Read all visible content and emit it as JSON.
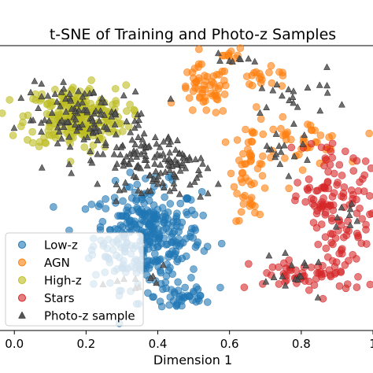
{
  "chart_data": {
    "type": "scatter",
    "title": "t-SNE of Training and Photo-z Samples",
    "xlabel": "Dimension 1",
    "ylabel": "",
    "xlim": [
      -0.04,
      1.0
    ],
    "ylim": [
      0.0,
      1.0
    ],
    "x_ticks": [
      {
        "value": 0.0,
        "label": "0.0"
      },
      {
        "value": 0.2,
        "label": "0.2"
      },
      {
        "value": 0.4,
        "label": "0.4"
      },
      {
        "value": 0.6,
        "label": "0.6"
      },
      {
        "value": 0.8,
        "label": "0.8"
      },
      {
        "value": 1.0,
        "label": "1"
      }
    ],
    "grid": false,
    "legend": "lower-left",
    "series": [
      {
        "name": "Low-z",
        "marker": "circle",
        "color": "#1f77b4",
        "clusters": [
          {
            "cx": 0.37,
            "cy": 0.33,
            "sx": 0.075,
            "sy": 0.09,
            "n": 330
          },
          {
            "cx": 0.47,
            "cy": 0.12,
            "sx": 0.04,
            "sy": 0.03,
            "n": 35
          }
        ]
      },
      {
        "name": "AGN",
        "marker": "circle",
        "color": "#ff7f0e",
        "clusters": [
          {
            "cx": 0.53,
            "cy": 0.84,
            "sx": 0.035,
            "sy": 0.045,
            "n": 55
          },
          {
            "cx": 0.6,
            "cy": 0.97,
            "sx": 0.02,
            "sy": 0.015,
            "n": 10
          },
          {
            "cx": 0.7,
            "cy": 0.88,
            "sx": 0.05,
            "sy": 0.02,
            "n": 20
          },
          {
            "cx": 0.66,
            "cy": 0.57,
            "sx": 0.025,
            "sy": 0.09,
            "n": 55
          },
          {
            "cx": 0.8,
            "cy": 0.66,
            "sx": 0.06,
            "sy": 0.04,
            "n": 40
          }
        ]
      },
      {
        "name": "High-z",
        "marker": "circle",
        "color": "#bcbd22",
        "clusters": [
          {
            "cx": 0.17,
            "cy": 0.75,
            "sx": 0.07,
            "sy": 0.055,
            "n": 230
          }
        ]
      },
      {
        "name": "Stars",
        "marker": "circle",
        "color": "#d62728",
        "clusters": [
          {
            "cx": 0.93,
            "cy": 0.47,
            "sx": 0.035,
            "sy": 0.09,
            "n": 55
          },
          {
            "cx": 0.85,
            "cy": 0.45,
            "sx": 0.03,
            "sy": 0.05,
            "n": 40
          },
          {
            "cx": 0.82,
            "cy": 0.19,
            "sx": 0.08,
            "sy": 0.03,
            "n": 60
          },
          {
            "cx": 0.9,
            "cy": 0.3,
            "sx": 0.03,
            "sy": 0.05,
            "n": 25
          },
          {
            "cx": 0.85,
            "cy": 0.63,
            "sx": 0.04,
            "sy": 0.03,
            "n": 10
          }
        ]
      },
      {
        "name": "Photo-z sample",
        "marker": "triangle",
        "color": "#555555",
        "clusters": [
          {
            "cx": 0.2,
            "cy": 0.74,
            "sx": 0.09,
            "sy": 0.06,
            "n": 120
          },
          {
            "cx": 0.36,
            "cy": 0.6,
            "sx": 0.06,
            "sy": 0.05,
            "n": 90
          },
          {
            "cx": 0.46,
            "cy": 0.55,
            "sx": 0.04,
            "sy": 0.05,
            "n": 40
          },
          {
            "cx": 0.6,
            "cy": 0.95,
            "sx": 0.03,
            "sy": 0.02,
            "n": 8
          },
          {
            "cx": 0.78,
            "cy": 0.82,
            "sx": 0.08,
            "sy": 0.04,
            "n": 20
          },
          {
            "cx": 0.75,
            "cy": 0.64,
            "sx": 0.04,
            "sy": 0.04,
            "n": 15
          },
          {
            "cx": 0.78,
            "cy": 0.19,
            "sx": 0.06,
            "sy": 0.03,
            "n": 15
          },
          {
            "cx": 0.95,
            "cy": 0.4,
            "sx": 0.02,
            "sy": 0.06,
            "n": 8
          },
          {
            "cx": 0.35,
            "cy": 0.16,
            "sx": 0.04,
            "sy": 0.03,
            "n": 10
          }
        ]
      }
    ]
  }
}
